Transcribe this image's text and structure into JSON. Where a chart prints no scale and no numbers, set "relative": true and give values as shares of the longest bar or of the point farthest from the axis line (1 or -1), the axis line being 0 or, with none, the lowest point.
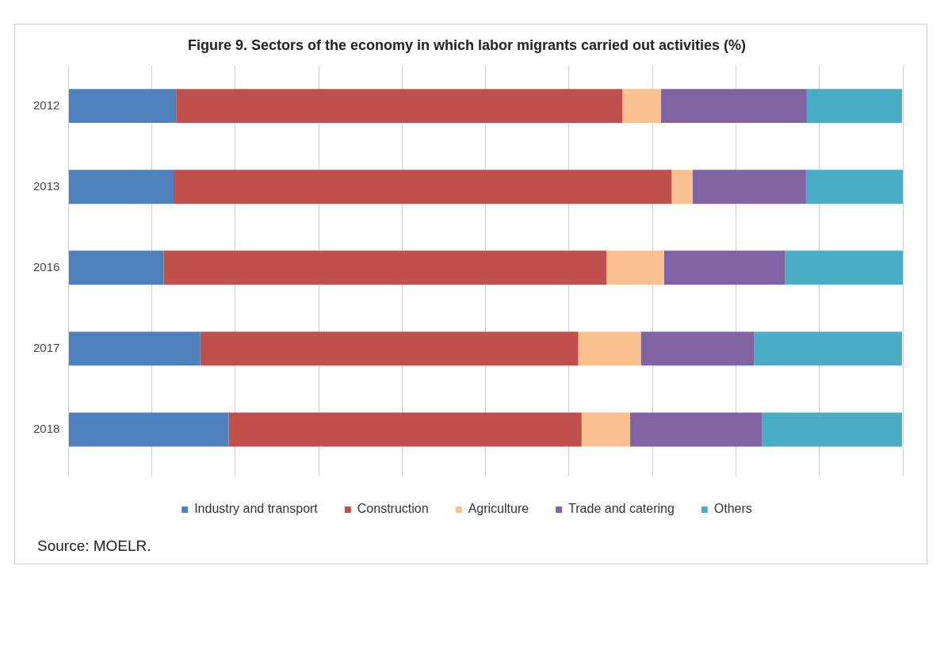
{
  "chart_data": {
    "type": "bar",
    "orientation": "horizontal",
    "stacked": true,
    "relative": true,
    "title": "Figure 9. Sectors of the economy in which labor migrants carried out activities (%)",
    "categories": [
      "2012",
      "2013",
      "2016",
      "2017",
      "2018"
    ],
    "series": [
      {
        "name": "Industry and transport",
        "color": "#4f81bd",
        "values": [
          0.129,
          0.126,
          0.114,
          0.158,
          0.192
        ]
      },
      {
        "name": "Construction",
        "color": "#c0504d",
        "values": [
          0.535,
          0.597,
          0.531,
          0.453,
          0.423
        ]
      },
      {
        "name": "Agriculture",
        "color": "#fac090",
        "values": [
          0.046,
          0.025,
          0.069,
          0.075,
          0.058
        ]
      },
      {
        "name": "Trade and catering",
        "color": "#8064a2",
        "values": [
          0.175,
          0.136,
          0.145,
          0.136,
          0.158
        ]
      },
      {
        "name": "Others",
        "color": "#4bacc6",
        "values": [
          0.114,
          0.116,
          0.141,
          0.177,
          0.168
        ]
      }
    ],
    "grid": "x",
    "legend": "bottom",
    "annotations": [
      "Source: MOELR."
    ]
  }
}
